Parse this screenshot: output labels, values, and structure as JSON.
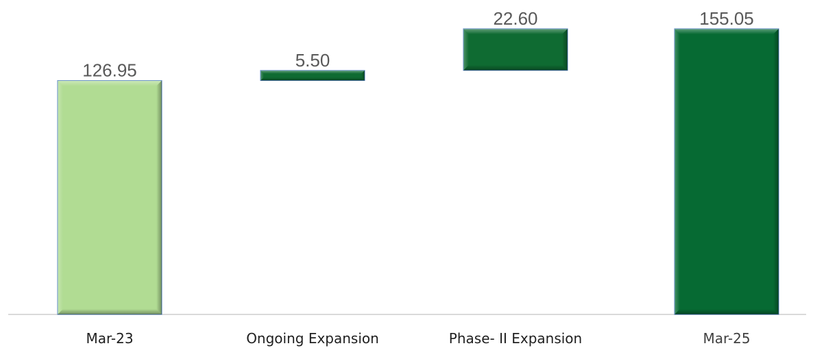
{
  "chart_data": {
    "type": "waterfall",
    "categories": [
      "Mar-23",
      "Ongoing Expansion",
      "Phase- II Expansion",
      "Mar-25"
    ],
    "values": [
      126.95,
      5.5,
      22.6,
      155.05
    ],
    "value_labels": [
      "126.95",
      "5.50",
      "22.60",
      "155.05"
    ],
    "kinds": [
      "total",
      "increase",
      "increase",
      "total"
    ],
    "title": "",
    "xlabel": "",
    "ylabel": "",
    "ylim": [
      0,
      155.05
    ],
    "grid": false,
    "legend": "none",
    "colors": {
      "start_total": "#b1dc93",
      "increase": "#0f6b32",
      "end_total": "#066a33",
      "axis": "#d9d9d9"
    }
  }
}
